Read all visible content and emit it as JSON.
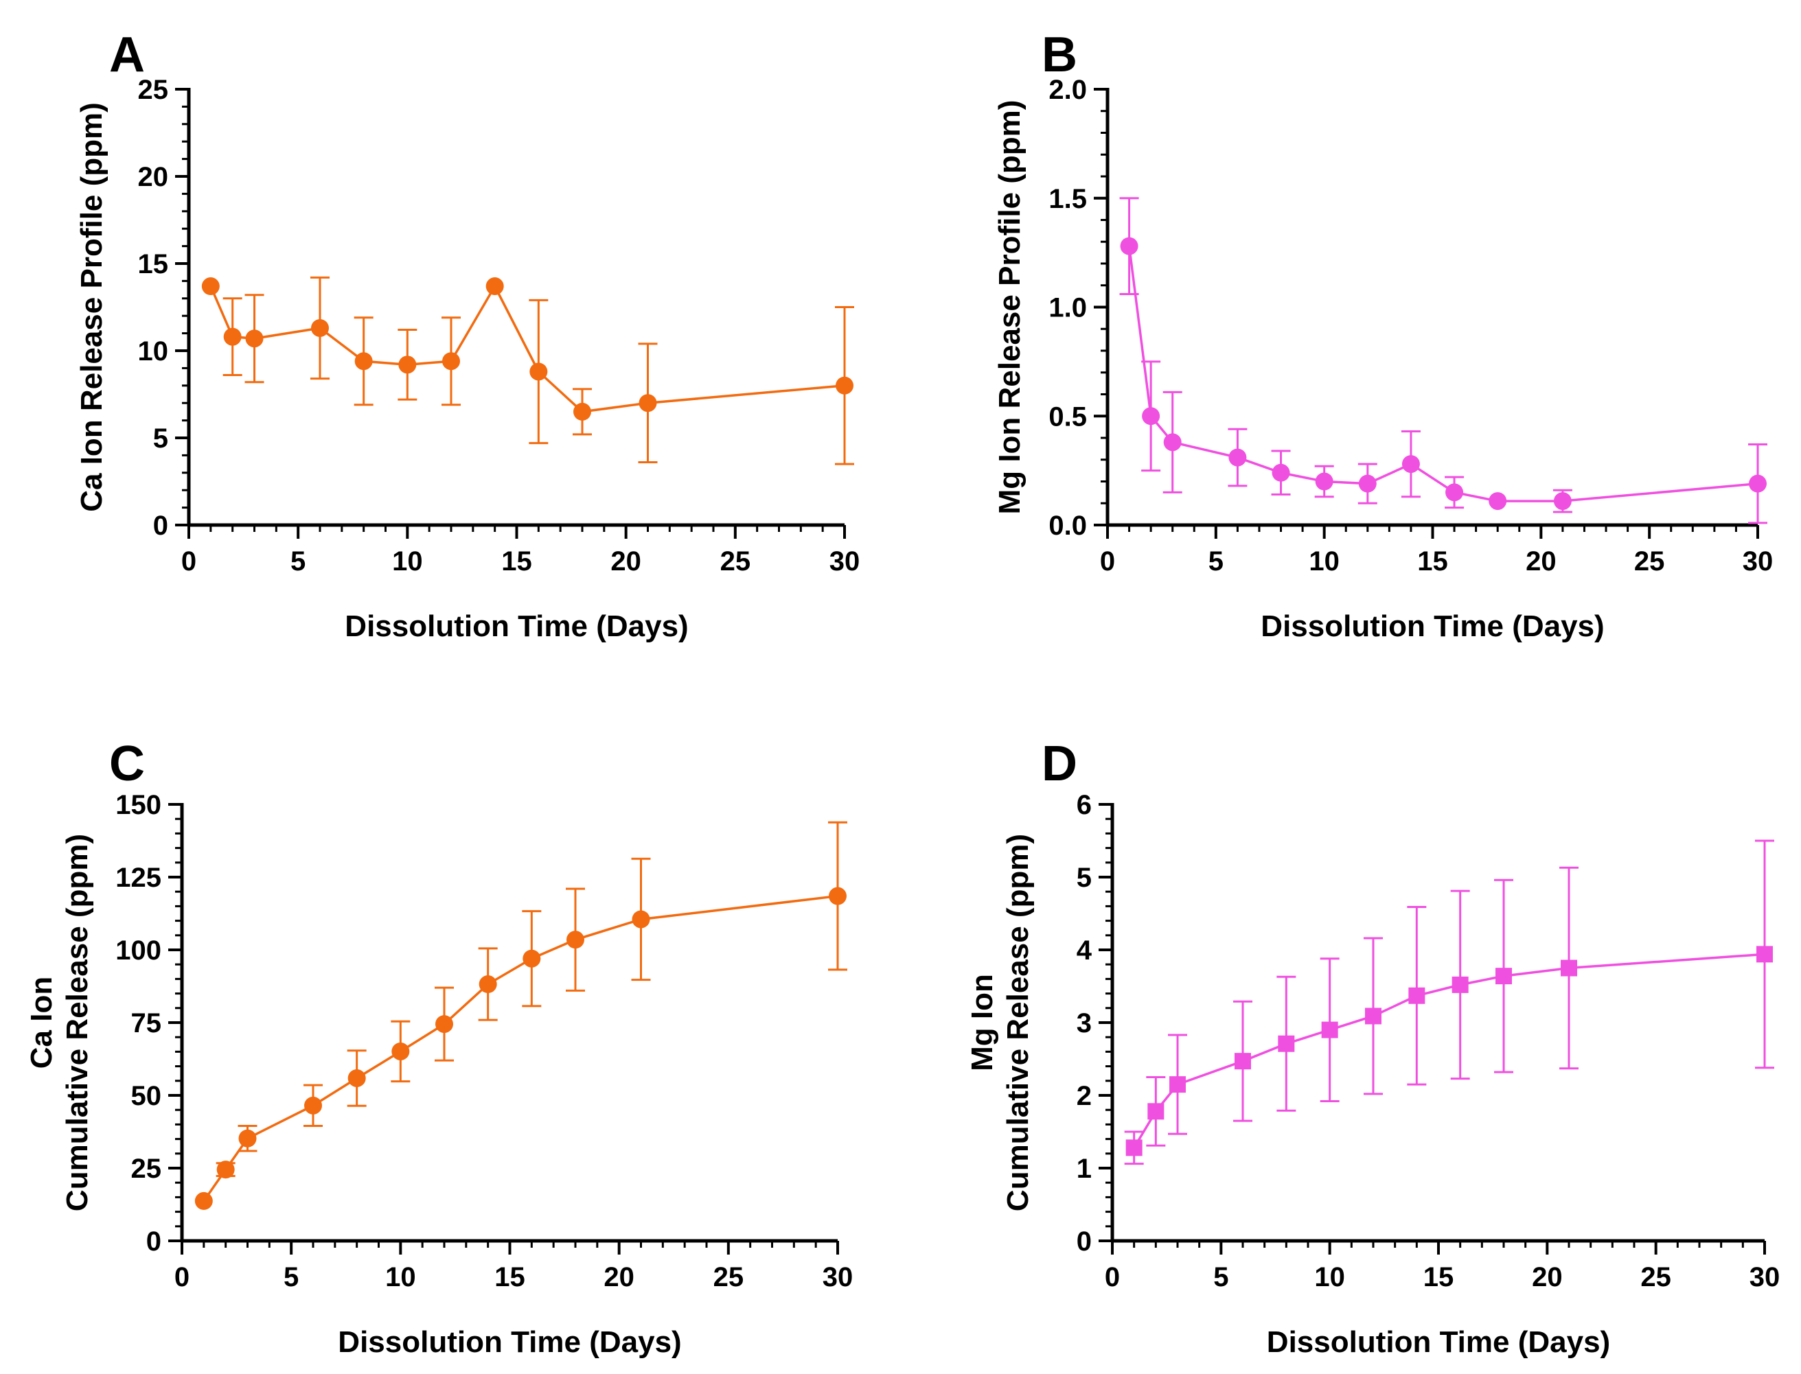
{
  "figure": {
    "panels": [
      "A",
      "B",
      "C",
      "D"
    ]
  },
  "chart_data": [
    {
      "panel": "A",
      "type": "line",
      "marker": "circle",
      "color": "#F26B10",
      "xlabel": "Dissolution Time (Days)",
      "ylabel": [
        "Ca Ion Release Profile (ppm)"
      ],
      "xlim": [
        0,
        30
      ],
      "ylim": [
        0,
        25
      ],
      "xticks": [
        0,
        5,
        10,
        15,
        20,
        25,
        30
      ],
      "yticks": [
        0,
        5,
        10,
        15,
        20,
        25
      ],
      "x_minor_step": 1,
      "y_minor_step": 1,
      "x": [
        1,
        2,
        3,
        6,
        8,
        10,
        12,
        14,
        16,
        18,
        21,
        30
      ],
      "y": [
        13.7,
        10.8,
        10.7,
        11.3,
        9.4,
        9.2,
        9.4,
        13.7,
        8.8,
        6.5,
        7.0,
        8.0
      ],
      "err": [
        0,
        2.2,
        2.5,
        2.9,
        2.5,
        2.0,
        2.5,
        0,
        4.1,
        1.3,
        3.4,
        4.5
      ]
    },
    {
      "panel": "B",
      "type": "line",
      "marker": "circle",
      "color": "#F050E0",
      "xlabel": "Dissolution Time (Days)",
      "ylabel": [
        "Mg Ion Release Profile (ppm)"
      ],
      "xlim": [
        0,
        30
      ],
      "ylim": [
        0,
        2.0
      ],
      "xticks": [
        0,
        5,
        10,
        15,
        20,
        25,
        30
      ],
      "yticks": [
        0.0,
        0.5,
        1.0,
        1.5,
        2.0
      ],
      "ytick_labels": [
        "0.0",
        "0.5",
        "1.0",
        "1.5",
        "2.0"
      ],
      "x_minor_step": 1,
      "y_minor_step": 0.1,
      "x": [
        1,
        2,
        3,
        6,
        8,
        10,
        12,
        14,
        16,
        18,
        21,
        30
      ],
      "y": [
        1.28,
        0.5,
        0.38,
        0.31,
        0.24,
        0.2,
        0.19,
        0.28,
        0.15,
        0.11,
        0.11,
        0.19
      ],
      "err": [
        0.22,
        0.25,
        0.23,
        0.13,
        0.1,
        0.07,
        0.09,
        0.15,
        0.07,
        0.0,
        0.05,
        0.18
      ]
    },
    {
      "panel": "C",
      "type": "line",
      "marker": "circle",
      "color": "#F26B10",
      "xlabel": "Dissolution Time (Days)",
      "ylabel": [
        "Ca Ion",
        "Cumulative Release (ppm)"
      ],
      "xlim": [
        0,
        30
      ],
      "ylim": [
        0,
        150
      ],
      "xticks": [
        0,
        5,
        10,
        15,
        20,
        25,
        30
      ],
      "yticks": [
        0,
        25,
        50,
        75,
        100,
        125,
        150
      ],
      "x_minor_step": 1,
      "y_minor_step": 5,
      "x": [
        1,
        2,
        3,
        6,
        8,
        10,
        12,
        14,
        16,
        18,
        21,
        30
      ],
      "y": [
        13.7,
        24.5,
        35.2,
        46.5,
        55.9,
        65.1,
        74.5,
        88.2,
        97.0,
        103.5,
        110.5,
        118.5
      ],
      "err": [
        0,
        2.2,
        4.3,
        7.0,
        9.5,
        10.3,
        12.5,
        12.3,
        16.3,
        17.5,
        20.8,
        25.3
      ]
    },
    {
      "panel": "D",
      "type": "line",
      "marker": "square",
      "color": "#F050E0",
      "xlabel": "Dissolution Time (Days)",
      "ylabel": [
        "Mg Ion",
        "Cumulative Release (ppm)"
      ],
      "xlim": [
        0,
        30
      ],
      "ylim": [
        0,
        6
      ],
      "xticks": [
        0,
        5,
        10,
        15,
        20,
        25,
        30
      ],
      "yticks": [
        0,
        1,
        2,
        3,
        4,
        5,
        6
      ],
      "x_minor_step": 1,
      "y_minor_step": 0.2,
      "x": [
        1,
        2,
        3,
        6,
        8,
        10,
        12,
        14,
        16,
        18,
        21,
        30
      ],
      "y": [
        1.28,
        1.78,
        2.15,
        2.47,
        2.71,
        2.9,
        3.09,
        3.37,
        3.52,
        3.64,
        3.75,
        3.94
      ],
      "err": [
        0.22,
        0.47,
        0.68,
        0.82,
        0.92,
        0.98,
        1.07,
        1.22,
        1.29,
        1.32,
        1.38,
        1.56
      ]
    }
  ]
}
